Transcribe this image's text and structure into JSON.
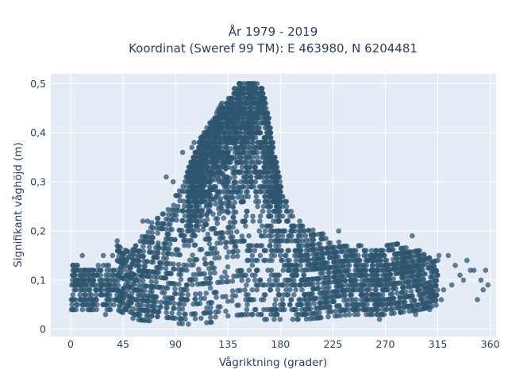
{
  "chart_data": {
    "type": "scatter",
    "title_line1": "År 1979 - 2019",
    "title_line2": "Koordinat (Sweref 99 TM): E 463980, N 6204481",
    "xlabel": "Vågriktning (grader)",
    "ylabel": "Signifikant våghöjd (m)",
    "xlim": [
      -17,
      365
    ],
    "ylim": [
      -0.015,
      0.52
    ],
    "xticks": [
      0,
      45,
      90,
      135,
      180,
      225,
      270,
      315,
      360
    ],
    "yticks": [
      0,
      0.1,
      0.2,
      0.3,
      0.4,
      0.5
    ],
    "ytick_labels": [
      "0",
      "0,1",
      "0,2",
      "0,3",
      "0,4",
      "0,5"
    ],
    "grid": true,
    "marker_color": "#2f5570",
    "marker_opacity": 0.75,
    "background_color": "#e5ecf6",
    "envelope_upper": [
      [
        0,
        0.12
      ],
      [
        10,
        0.13
      ],
      [
        20,
        0.13
      ],
      [
        30,
        0.13
      ],
      [
        40,
        0.18
      ],
      [
        45,
        0.16
      ],
      [
        60,
        0.18
      ],
      [
        70,
        0.22
      ],
      [
        80,
        0.24
      ],
      [
        90,
        0.27
      ],
      [
        100,
        0.32
      ],
      [
        110,
        0.38
      ],
      [
        120,
        0.42
      ],
      [
        130,
        0.46
      ],
      [
        138,
        0.48
      ],
      [
        145,
        0.5
      ],
      [
        150,
        0.5
      ],
      [
        160,
        0.5
      ],
      [
        165,
        0.49
      ],
      [
        170,
        0.43
      ],
      [
        175,
        0.36
      ],
      [
        180,
        0.3
      ],
      [
        185,
        0.26
      ],
      [
        190,
        0.24
      ],
      [
        200,
        0.21
      ],
      [
        210,
        0.2
      ],
      [
        220,
        0.19
      ],
      [
        230,
        0.18
      ],
      [
        240,
        0.17
      ],
      [
        250,
        0.17
      ],
      [
        260,
        0.16
      ],
      [
        270,
        0.17
      ],
      [
        280,
        0.18
      ],
      [
        290,
        0.16
      ],
      [
        300,
        0.16
      ],
      [
        310,
        0.14
      ],
      [
        320,
        0.14
      ],
      [
        330,
        0.14
      ],
      [
        340,
        0.13
      ],
      [
        350,
        0.12
      ],
      [
        360,
        0.12
      ]
    ],
    "envelope_lower": [
      [
        0,
        0.07
      ],
      [
        20,
        0.05
      ],
      [
        40,
        0.04
      ],
      [
        55,
        0.02
      ],
      [
        100,
        0.01
      ],
      [
        150,
        0.02
      ],
      [
        200,
        0.02
      ],
      [
        240,
        0.03
      ],
      [
        270,
        0.03
      ],
      [
        300,
        0.04
      ],
      [
        330,
        0.06
      ],
      [
        360,
        0.08
      ]
    ],
    "outliers": [
      [
        2,
        0.12
      ],
      [
        4,
        0.1
      ],
      [
        6,
        0.1
      ],
      [
        8,
        0.08
      ],
      [
        10,
        0.15
      ],
      [
        12,
        0.06
      ],
      [
        16,
        0.11
      ],
      [
        20,
        0.05
      ],
      [
        22,
        0.07
      ],
      [
        25,
        0.12
      ],
      [
        28,
        0.15
      ],
      [
        30,
        0.03
      ],
      [
        34,
        0.09
      ],
      [
        36,
        0.15
      ],
      [
        40,
        0.18
      ],
      [
        42,
        0.06
      ],
      [
        62,
        0.22
      ],
      [
        66,
        0.22
      ],
      [
        75,
        0.17
      ],
      [
        82,
        0.31
      ],
      [
        88,
        0.3
      ],
      [
        92,
        0.25
      ],
      [
        96,
        0.36
      ],
      [
        104,
        0.37
      ],
      [
        106,
        0.38
      ],
      [
        108,
        0.22
      ],
      [
        112,
        0.35
      ],
      [
        230,
        0.2
      ],
      [
        233,
        0.04
      ],
      [
        245,
        0.13
      ],
      [
        265,
        0.02
      ],
      [
        275,
        0.04
      ],
      [
        285,
        0.14
      ],
      [
        293,
        0.19
      ],
      [
        296,
        0.03
      ],
      [
        298,
        0.1
      ],
      [
        300,
        0.07
      ],
      [
        302,
        0.13
      ],
      [
        308,
        0.04
      ],
      [
        312,
        0.12
      ],
      [
        316,
        0.15
      ],
      [
        318,
        0.06
      ],
      [
        320,
        0.08
      ],
      [
        324,
        0.15
      ],
      [
        327,
        0.09
      ],
      [
        330,
        0.13
      ],
      [
        334,
        0.11
      ],
      [
        337,
        0.1
      ],
      [
        340,
        0.14
      ],
      [
        343,
        0.12
      ],
      [
        346,
        0.12
      ],
      [
        349,
        0.06
      ],
      [
        352,
        0.1
      ],
      [
        354,
        0.08
      ],
      [
        356,
        0.12
      ],
      [
        358,
        0.09
      ]
    ]
  }
}
